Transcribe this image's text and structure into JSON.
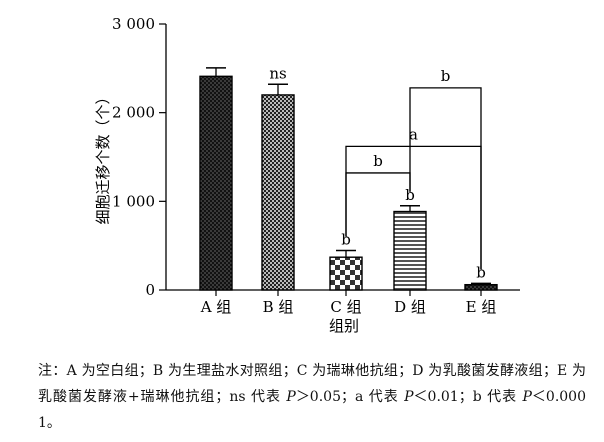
{
  "chart_data": {
    "type": "bar",
    "ylabel": "细胞迁移个数（个）",
    "xlabel": "组别",
    "ylim": [
      0,
      3000
    ],
    "yticks": [
      0,
      1000,
      2000,
      3000
    ],
    "ytick_labels": [
      "0",
      "1 000",
      "2 000",
      "3 000"
    ],
    "grid": false,
    "legend": "none",
    "categories": [
      "A 组",
      "B 组",
      "C 组",
      "D 组",
      "E 组"
    ],
    "values": [
      2410,
      2200,
      370,
      885,
      60
    ],
    "errors": [
      95,
      120,
      75,
      65,
      15
    ],
    "patterns": [
      "dots",
      "checker-fine",
      "checker",
      "hstripes",
      "dots"
    ],
    "bar_labels": [
      "",
      "ns",
      "b",
      "b",
      "b"
    ],
    "brackets": [
      {
        "from": 2,
        "to": 3,
        "label": "b",
        "level": 1320
      },
      {
        "from": 2,
        "to": 4,
        "label": "a",
        "level": 1620
      },
      {
        "from": 3,
        "to": 4,
        "label": "b",
        "level": 2280
      }
    ]
  },
  "note": {
    "prefix": "注：A 为空白组；B 为生理盐水对照组；C 为瑞琳他抗组；D 为乳酸菌发酵液组；E 为乳酸菌发酵液+瑞琳他抗组；ns 代表 ",
    "p_symbol": "P",
    "ns_cond": "＞0.05；a 代表 ",
    "a_cond": "＜0.01；b 代表 ",
    "b_cond": "＜0.000 1。"
  }
}
